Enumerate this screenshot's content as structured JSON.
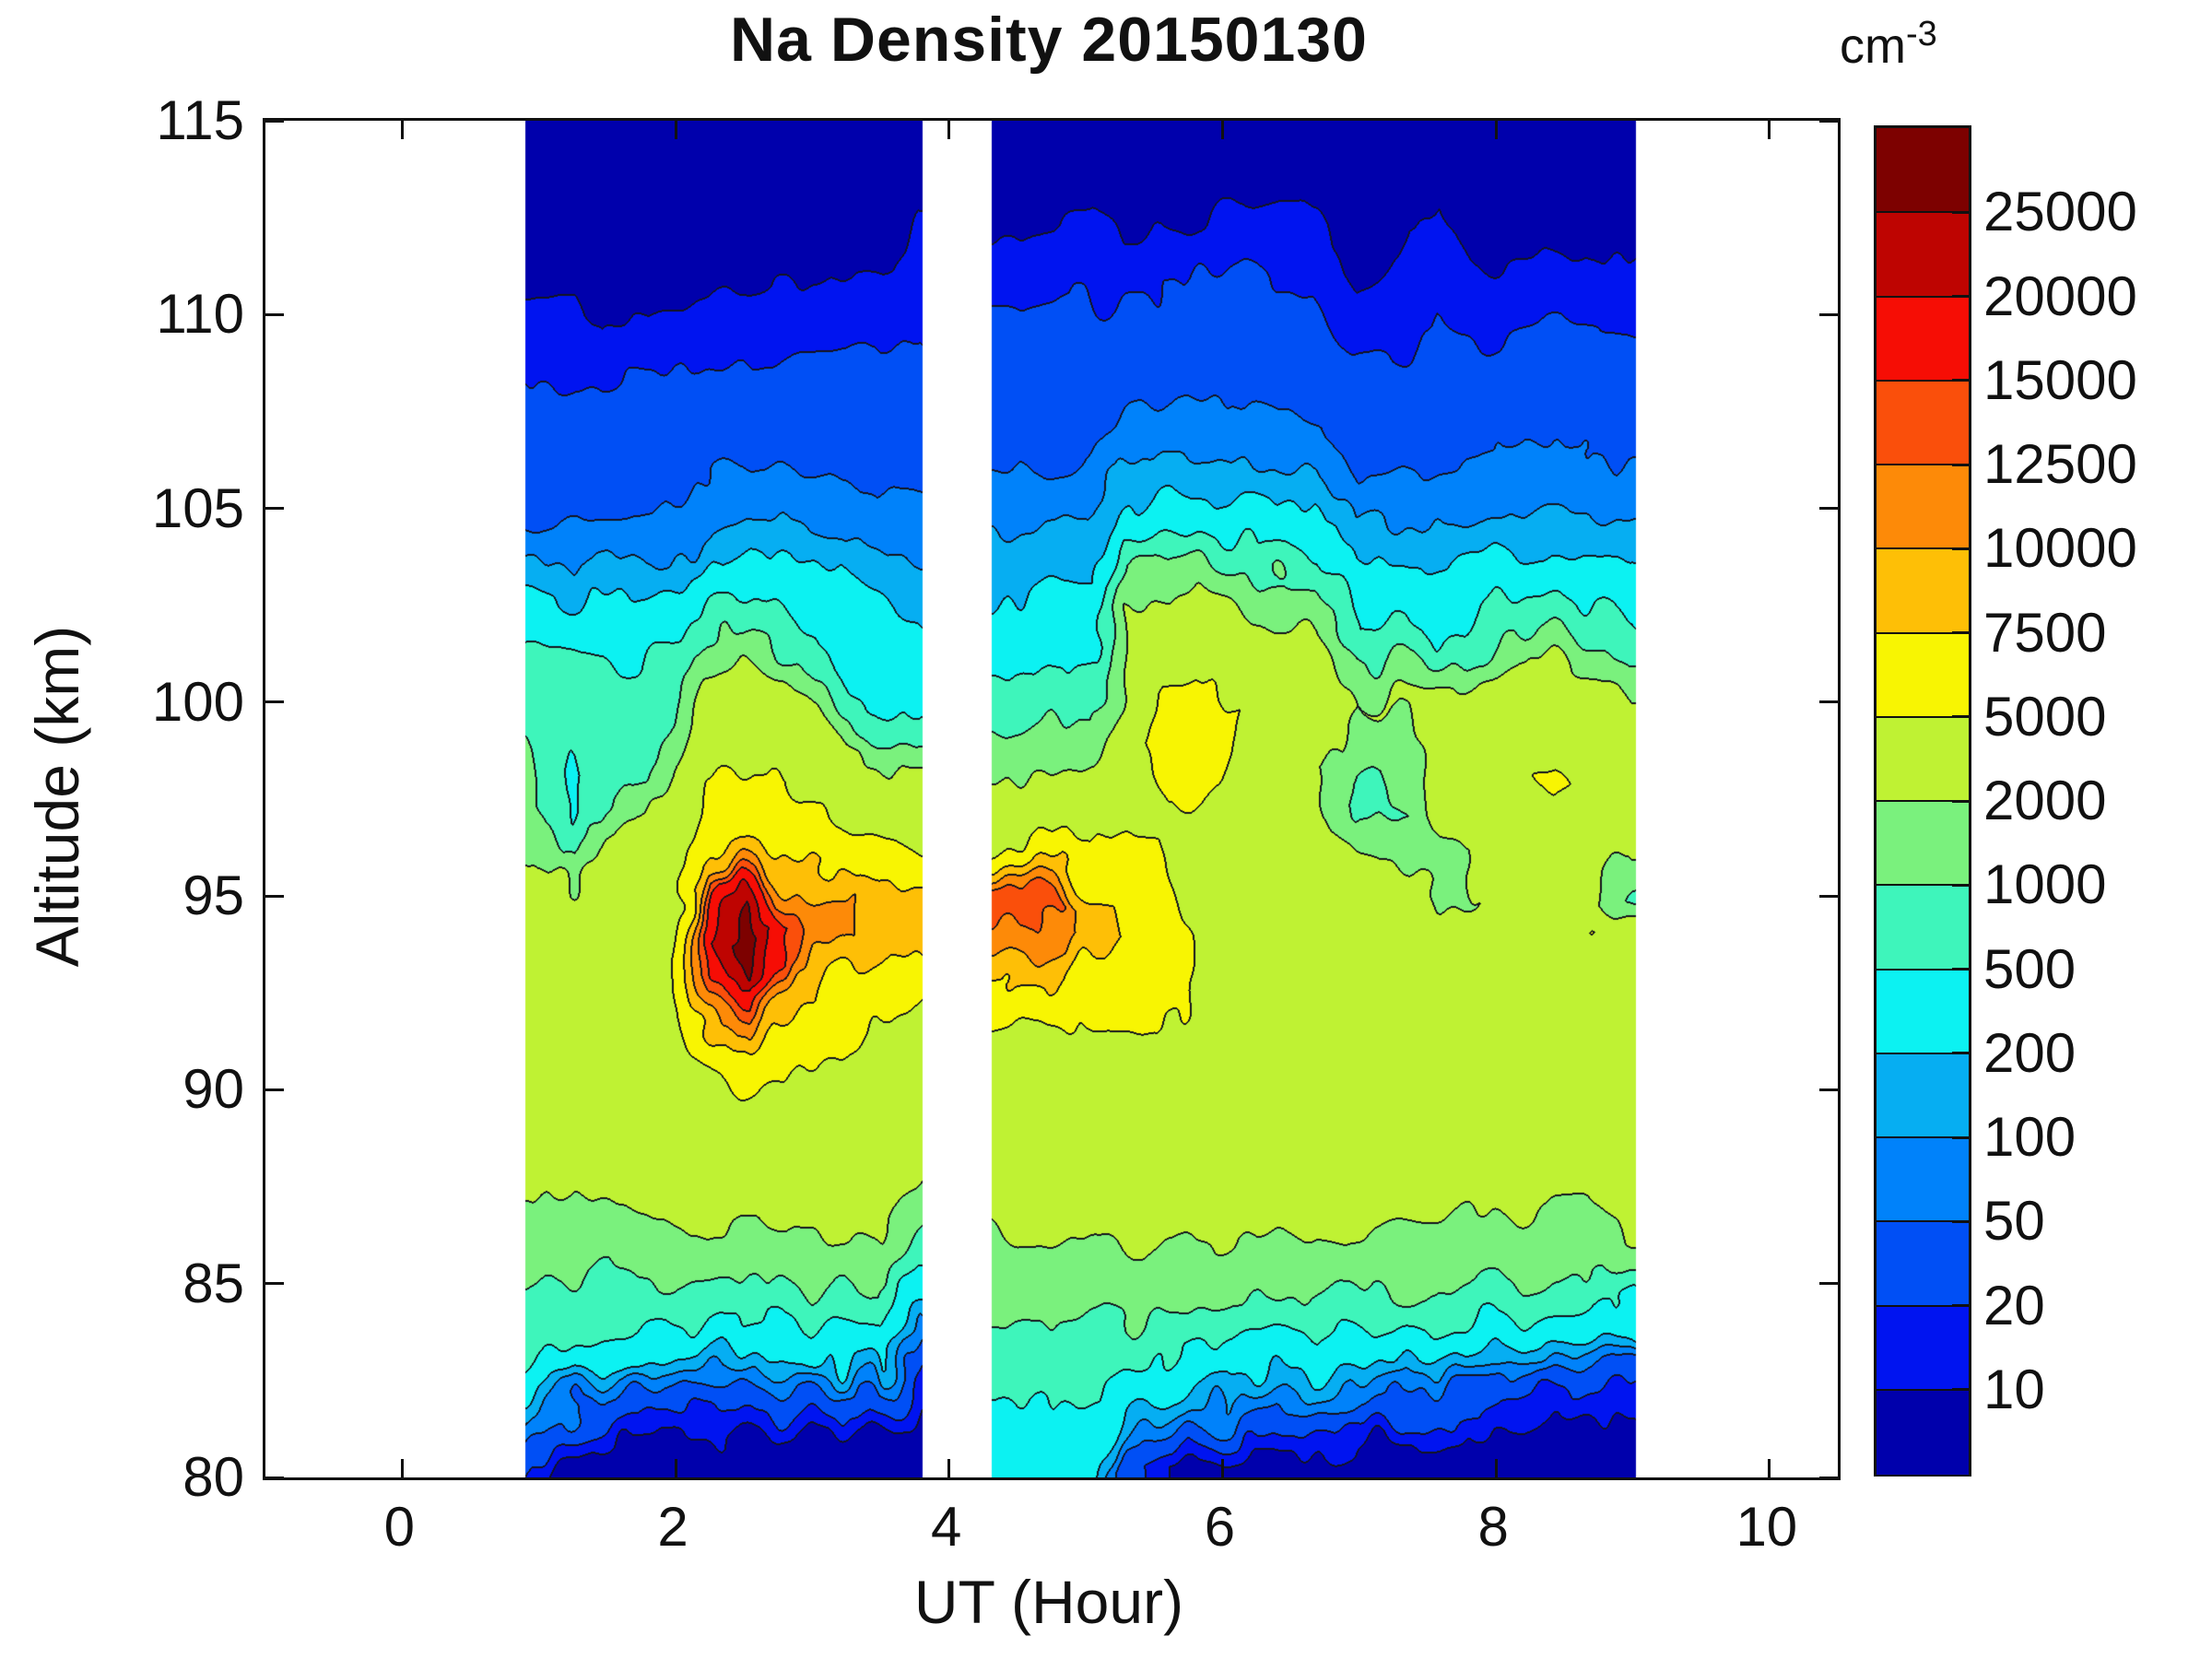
{
  "title": "Na Density 20150130",
  "axes": {
    "xlabel": "UT (Hour)",
    "ylabel": "Altitude (km)",
    "xticks": [
      0,
      2,
      4,
      6,
      8,
      10
    ],
    "yticks": [
      80,
      85,
      90,
      95,
      100,
      105,
      110,
      115
    ],
    "xlim": [
      -1,
      10.5
    ],
    "ylim": [
      80,
      115
    ]
  },
  "colorbar": {
    "unit_base": "cm",
    "unit_exp": "-3",
    "levels": [
      10,
      20,
      50,
      100,
      200,
      500,
      1000,
      2000,
      5000,
      7500,
      10000,
      12500,
      15000,
      20000,
      25000
    ],
    "colors": [
      "#0000AC",
      "#0014F0",
      "#004FF5",
      "#0082FA",
      "#06AEF2",
      "#0CF2F2",
      "#3EF5BB",
      "#7AF17D",
      "#BFF233",
      "#F8F502",
      "#FEBF06",
      "#FD8A08",
      "#FA4F0B",
      "#F60D05",
      "#BE0401",
      "#7D0100"
    ],
    "line_color": "#141420",
    "frame_color": "#111111"
  },
  "chart_data": {
    "type": "heatmap",
    "title": "Na Density 20150130",
    "xlabel": "UT (Hour)",
    "ylabel": "Altitude (km)",
    "xlim": [
      -1,
      10.5
    ],
    "ylim": [
      80,
      115
    ],
    "legend": "discrete filled contour levels, cm^-3",
    "panels": [
      [
        0.9,
        3.8
      ],
      [
        4.31,
        9.02
      ]
    ],
    "x_hours": [
      0.9,
      1.25,
      1.5,
      1.75,
      2.0,
      2.25,
      2.5,
      2.75,
      3.0,
      3.25,
      3.5,
      3.8,
      4.3,
      4.55,
      4.8,
      5.05,
      5.3,
      5.55,
      5.8,
      6.1,
      6.4,
      6.7,
      7.0,
      7.35,
      7.6,
      7.9,
      8.2,
      8.45,
      8.7,
      9.0
    ],
    "altitudes_km": [
      80,
      81,
      82,
      83,
      84,
      85,
      86,
      87,
      88,
      89,
      90,
      91,
      92,
      93,
      94,
      95,
      96,
      97,
      98,
      99,
      100,
      101,
      102,
      103,
      104,
      105,
      106,
      107,
      108,
      109,
      110,
      111,
      112,
      113,
      114,
      115
    ],
    "values_cm3": [
      [
        14,
        80,
        300,
        600,
        850,
        1100,
        1500,
        1900,
        2400,
        2800,
        3200,
        3400,
        3500,
        3500,
        3400,
        3200,
        1900,
        1700,
        1500,
        1000,
        800,
        600,
        350,
        220,
        60,
        40,
        34,
        28,
        22,
        15,
        12,
        8,
        6,
        5,
        5,
        5
      ],
      [
        6,
        14,
        60,
        300,
        700,
        900,
        1500,
        2000,
        2600,
        3000,
        3300,
        3500,
        3600,
        3600,
        3500,
        3300,
        800,
        420,
        380,
        650,
        700,
        500,
        350,
        150,
        70,
        40,
        34,
        28,
        22,
        15,
        11,
        9,
        6,
        5,
        5,
        5
      ],
      [
        6,
        10,
        40,
        250,
        600,
        900,
        1400,
        2000,
        2600,
        3100,
        3400,
        3600,
        3800,
        3800,
        3700,
        3400,
        2500,
        1200,
        800,
        800,
        700,
        450,
        300,
        130,
        60,
        38,
        32,
        26,
        20,
        12,
        9,
        7,
        6,
        5,
        5,
        5
      ],
      [
        6,
        9,
        30,
        200,
        500,
        1000,
        1600,
        2200,
        2800,
        3200,
        3500,
        3800,
        4000,
        4100,
        4000,
        3600,
        3300,
        1800,
        900,
        800,
        700,
        500,
        320,
        140,
        65,
        42,
        36,
        28,
        20,
        13,
        10,
        8,
        6,
        5,
        5,
        5
      ],
      [
        6,
        8,
        25,
        150,
        450,
        1100,
        1700,
        2400,
        3000,
        3400,
        3800,
        4200,
        4600,
        4800,
        4700,
        4400,
        4000,
        3600,
        3200,
        1600,
        900,
        700,
        400,
        200,
        80,
        50,
        40,
        30,
        22,
        15,
        11,
        8,
        6,
        5,
        5,
        5
      ],
      [
        6,
        8,
        20,
        120,
        400,
        1000,
        1700,
        2500,
        3200,
        3800,
        4400,
        5500,
        9000,
        16000,
        20000,
        13000,
        7000,
        5500,
        5200,
        3600,
        3300,
        1600,
        700,
        300,
        120,
        60,
        45,
        34,
        24,
        16,
        12,
        8,
        6,
        5,
        5,
        5
      ],
      [
        6,
        8,
        24,
        150,
        400,
        900,
        1600,
        2400,
        3200,
        4000,
        5200,
        6500,
        13000,
        25000,
        29500,
        21000,
        8800,
        6200,
        5600,
        4200,
        3400,
        1800,
        900,
        400,
        150,
        70,
        50,
        36,
        26,
        18,
        13,
        9,
        6,
        5,
        5,
        5
      ],
      [
        6,
        8,
        35,
        180,
        450,
        1000,
        1700,
        2500,
        3300,
        4100,
        5000,
        6000,
        8500,
        15000,
        17000,
        12000,
        7500,
        5800,
        5200,
        3800,
        3200,
        1700,
        800,
        350,
        140,
        65,
        48,
        36,
        26,
        18,
        13,
        9,
        6,
        5,
        5,
        5
      ],
      [
        6,
        8,
        40,
        200,
        500,
        1100,
        1800,
        2600,
        3300,
        4000,
        4600,
        5200,
        7800,
        8800,
        10800,
        11200,
        6500,
        5400,
        4200,
        3300,
        1500,
        800,
        400,
        250,
        120,
        60,
        48,
        36,
        28,
        20,
        14,
        10,
        7,
        5,
        5,
        5
      ],
      [
        6,
        9,
        45,
        250,
        600,
        1200,
        1900,
        2600,
        3200,
        3800,
        4200,
        4800,
        5600,
        7000,
        10500,
        10800,
        6200,
        4600,
        3400,
        1500,
        600,
        400,
        300,
        200,
        100,
        55,
        45,
        34,
        26,
        20,
        15,
        10,
        7,
        5,
        5,
        5
      ],
      [
        6,
        9,
        50,
        300,
        700,
        1300,
        2000,
        2600,
        3100,
        3600,
        4000,
        4400,
        5000,
        5800,
        8800,
        8800,
        5600,
        3600,
        2600,
        900,
        450,
        350,
        280,
        180,
        90,
        50,
        42,
        32,
        25,
        19,
        14,
        10,
        7,
        5,
        5,
        5
      ],
      [
        6,
        7,
        10,
        16,
        70,
        260,
        800,
        1600,
        2400,
        3200,
        3600,
        4200,
        4800,
        5800,
        8600,
        8600,
        5400,
        3400,
        2200,
        800,
        380,
        300,
        210,
        140,
        85,
        55,
        42,
        34,
        27,
        21,
        16,
        13,
        11,
        9,
        7,
        6
      ],
      [
        120,
        300,
        600,
        700,
        900,
        1300,
        1800,
        2400,
        3000,
        3300,
        3600,
        4200,
        4800,
        5600,
        6200,
        6000,
        5200,
        3400,
        1600,
        1000,
        700,
        400,
        300,
        160,
        110,
        60,
        48,
        36,
        28,
        24,
        20,
        14,
        11,
        8,
        6,
        5
      ],
      [
        260,
        320,
        500,
        700,
        1000,
        1400,
        1900,
        2500,
        3100,
        3400,
        3800,
        4400,
        5200,
        8000,
        12000,
        13800,
        6400,
        3600,
        2000,
        1100,
        750,
        420,
        310,
        170,
        115,
        62,
        50,
        38,
        30,
        25,
        21,
        15,
        11,
        8,
        6,
        5
      ],
      [
        300,
        400,
        550,
        750,
        1000,
        1500,
        2000,
        2600,
        3100,
        3500,
        3900,
        4500,
        5400,
        8200,
        11800,
        12600,
        6600,
        3800,
        2100,
        1200,
        800,
        450,
        330,
        180,
        120,
        65,
        52,
        40,
        32,
        26,
        22,
        16,
        12,
        8,
        6,
        5
      ],
      [
        280,
        380,
        520,
        700,
        950,
        1400,
        2000,
        2600,
        3200,
        3600,
        4000,
        4600,
        5300,
        6400,
        8800,
        8200,
        5400,
        3600,
        2400,
        1400,
        850,
        500,
        360,
        200,
        130,
        70,
        55,
        42,
        33,
        27,
        22,
        16,
        12,
        9,
        6,
        5
      ],
      [
        30,
        120,
        320,
        700,
        1000,
        1500,
        2100,
        2700,
        3300,
        3700,
        4100,
        4700,
        5400,
        6300,
        7200,
        6900,
        5600,
        4400,
        3700,
        3400,
        3200,
        3000,
        2400,
        1500,
        600,
        250,
        110,
        60,
        40,
        30,
        24,
        16,
        10,
        8,
        6,
        5
      ],
      [
        14,
        40,
        200,
        500,
        900,
        1400,
        2000,
        2700,
        3300,
        3800,
        4200,
        4800,
        5300,
        5800,
        6200,
        5800,
        5200,
        4800,
        5600,
        6200,
        5600,
        3400,
        2800,
        1600,
        650,
        260,
        115,
        62,
        42,
        30,
        24,
        17,
        11,
        8,
        6,
        5
      ],
      [
        6,
        25,
        150,
        450,
        850,
        1400,
        2000,
        2700,
        3300,
        3800,
        4200,
        4600,
        4800,
        4800,
        4800,
        4600,
        4400,
        4600,
        5800,
        6400,
        5800,
        4400,
        3000,
        1700,
        700,
        280,
        120,
        65,
        44,
        32,
        25,
        18,
        11,
        8,
        6,
        5
      ],
      [
        6,
        30,
        120,
        400,
        800,
        1300,
        1900,
        2600,
        3200,
        3700,
        4000,
        4300,
        4500,
        4600,
        4500,
        4300,
        4100,
        4200,
        4600,
        5000,
        5200,
        4200,
        2800,
        1500,
        650,
        270,
        120,
        65,
        45,
        33,
        26,
        20,
        14,
        10,
        7,
        5
      ],
      [
        6,
        25,
        100,
        350,
        750,
        1250,
        1900,
        2600,
        3200,
        3600,
        3900,
        4100,
        4300,
        4400,
        4300,
        4100,
        3900,
        3800,
        3900,
        4100,
        4000,
        3400,
        2200,
        1200,
        550,
        240,
        110,
        60,
        42,
        32,
        25,
        19,
        14,
        10,
        7,
        5
      ],
      [
        6,
        20,
        90,
        320,
        700,
        1200,
        1800,
        2500,
        3100,
        3500,
        3800,
        4000,
        4200,
        4200,
        4100,
        3900,
        3400,
        2600,
        2200,
        2600,
        3000,
        2600,
        1700,
        900,
        400,
        200,
        100,
        55,
        38,
        29,
        23,
        17,
        13,
        9,
        7,
        5
      ],
      [
        6,
        12,
        60,
        250,
        650,
        1150,
        1750,
        2400,
        3000,
        3400,
        3700,
        3900,
        4000,
        4000,
        3900,
        3600,
        1900,
        900,
        900,
        1600,
        2000,
        1300,
        500,
        280,
        140,
        75,
        45,
        34,
        26,
        18,
        12,
        8,
        6,
        5,
        5,
        5
      ],
      [
        6,
        10,
        55,
        220,
        620,
        1100,
        1700,
        2300,
        2900,
        3300,
        3600,
        3800,
        3900,
        3900,
        3700,
        3000,
        1800,
        1000,
        1100,
        1800,
        2200,
        900,
        400,
        300,
        150,
        80,
        48,
        35,
        26,
        19,
        14,
        12,
        10,
        7,
        5,
        5
      ],
      [
        5,
        9,
        40,
        180,
        520,
        1050,
        1650,
        2300,
        2900,
        3300,
        3600,
        3800,
        3900,
        3800,
        3500,
        1900,
        1700,
        2600,
        3400,
        3400,
        2800,
        1100,
        400,
        300,
        160,
        85,
        52,
        38,
        30,
        24,
        19,
        15,
        12,
        10,
        7,
        5
      ],
      [
        5,
        8,
        30,
        140,
        480,
        1000,
        1600,
        2250,
        2850,
        3250,
        3550,
        3750,
        3850,
        3750,
        3400,
        2000,
        2200,
        3200,
        3800,
        3800,
        3200,
        1600,
        600,
        350,
        180,
        95,
        55,
        40,
        30,
        22,
        16,
        11,
        8,
        6,
        5,
        5
      ],
      [
        5,
        7,
        22,
        110,
        440,
        980,
        1550,
        2200,
        2800,
        3200,
        3500,
        3700,
        3800,
        3700,
        3300,
        2100,
        2400,
        3800,
        4600,
        3900,
        3300,
        2200,
        800,
        400,
        200,
        100,
        58,
        42,
        31,
        23,
        17,
        12,
        8,
        6,
        5,
        5
      ],
      [
        5,
        7,
        18,
        80,
        400,
        950,
        1500,
        2150,
        2750,
        3150,
        3450,
        3650,
        3750,
        3700,
        3400,
        2300,
        2700,
        4200,
        6200,
        4200,
        3300,
        2300,
        900,
        420,
        210,
        105,
        60,
        43,
        32,
        24,
        18,
        12,
        8,
        6,
        5,
        5
      ],
      [
        5,
        6,
        14,
        60,
        350,
        930,
        1480,
        2100,
        2700,
        3100,
        3400,
        3600,
        3700,
        3650,
        5200,
        2400,
        2600,
        3400,
        4200,
        3600,
        2600,
        1700,
        700,
        380,
        190,
        100,
        58,
        42,
        32,
        24,
        18,
        13,
        9,
        6,
        5,
        5
      ],
      [
        5,
        6,
        12,
        40,
        300,
        1000,
        2100,
        2600,
        2900,
        3100,
        3300,
        3400,
        3500,
        3500,
        3400,
        800,
        1900,
        2600,
        3200,
        2800,
        1800,
        1100,
        500,
        300,
        160,
        90,
        52,
        38,
        29,
        22,
        17,
        12,
        9,
        7,
        5,
        5
      ]
    ]
  }
}
